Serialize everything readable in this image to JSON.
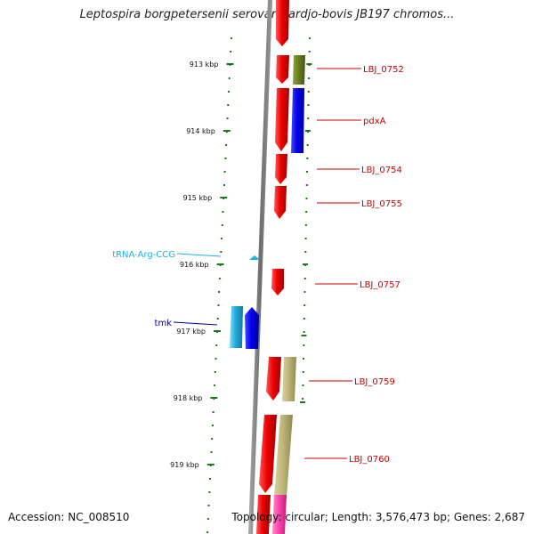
{
  "title": "Leptospira borgpetersenii serovar Hardjo-bovis JB197 chromos...",
  "footer": {
    "accession": "Accession: NC_008510",
    "stats": "Topology: circular; Length: 3,576,473 bp; Genes: 2,687"
  },
  "axis": {
    "ticks": [
      "913 kbp",
      "914 kbp",
      "915 kbp",
      "916 kbp",
      "917 kbp",
      "918 kbp",
      "919 kbp"
    ]
  },
  "colors": {
    "tick_green": "#1a7a1a",
    "backbone": "#808080",
    "gene_red": "#ee0000",
    "label_red": "#cc0000",
    "gene_blue": "#0000ee",
    "gene_cyan": "#22aadd",
    "label_cyan": "#1eb0e6",
    "label_navy": "#000088",
    "gene_olive": "#6b7d22",
    "gene_khaki": "#bdb77a",
    "gene_pink": "#ff44aa"
  },
  "genes": [
    {
      "name": "LBJ_0752",
      "color": "label_red"
    },
    {
      "name": "pdxA",
      "color": "label_red"
    },
    {
      "name": "LBJ_0754",
      "color": "label_red"
    },
    {
      "name": "LBJ_0755",
      "color": "label_red"
    },
    {
      "name": "tRNA-Arg-CCG",
      "color": "label_cyan"
    },
    {
      "name": "LBJ_0757",
      "color": "label_red"
    },
    {
      "name": "tmk",
      "color": "label_navy"
    },
    {
      "name": "LBJ_0759",
      "color": "label_red"
    },
    {
      "name": "LBJ_0760",
      "color": "label_red"
    }
  ]
}
